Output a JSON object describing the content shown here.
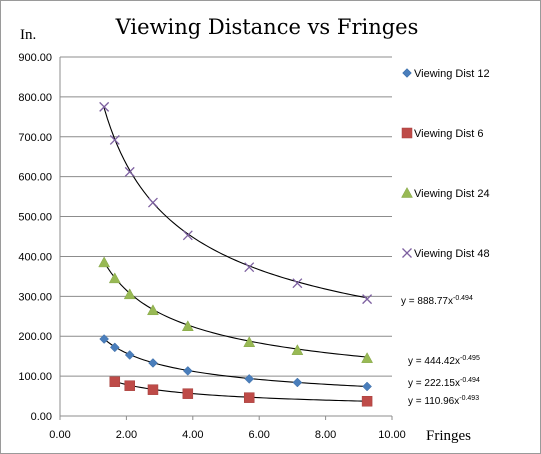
{
  "chart_data": {
    "type": "scatter",
    "title": "Viewing Distance vs Fringes",
    "xlabel": "Fringes",
    "ylabel": "In.",
    "xlim": [
      0,
      10
    ],
    "ylim": [
      0,
      900
    ],
    "xticks": [
      "0.00",
      "2.00",
      "4.00",
      "6.00",
      "8.00",
      "10.00"
    ],
    "yticks": [
      "0.00",
      "100.00",
      "200.00",
      "300.00",
      "400.00",
      "500.00",
      "600.00",
      "700.00",
      "800.00",
      "900.00"
    ],
    "grid": "horizontal",
    "legend_position": "right",
    "series": [
      {
        "name": "Viewing Dist 12",
        "marker": "diamond",
        "color": "#4a7ebb",
        "points": [
          [
            1.33,
            193
          ],
          [
            1.65,
            172
          ],
          [
            2.1,
            153
          ],
          [
            2.8,
            133
          ],
          [
            3.85,
            113
          ],
          [
            5.7,
            93
          ],
          [
            7.15,
            84
          ],
          [
            9.25,
            74
          ]
        ],
        "trendline": {
          "coef": 222.15,
          "exp": -0.494,
          "x_range": [
            1.33,
            9.25
          ]
        },
        "equation": {
          "prefix": "y = 222.15x",
          "exponent": "-0.494"
        }
      },
      {
        "name": "Viewing Dist 6",
        "marker": "square",
        "color": "#be4b48",
        "points": [
          [
            1.65,
            86
          ],
          [
            2.1,
            76
          ],
          [
            2.8,
            66
          ],
          [
            3.85,
            56
          ],
          [
            5.7,
            46
          ],
          [
            9.25,
            37
          ]
        ],
        "trendline": {
          "coef": 110.96,
          "exp": -0.493,
          "x_range": [
            1.65,
            9.25
          ]
        },
        "equation": {
          "prefix": "y = 110.96x",
          "exponent": "-0.493"
        }
      },
      {
        "name": "Viewing Dist 24",
        "marker": "triangle",
        "color": "#98b954",
        "points": [
          [
            1.33,
            385
          ],
          [
            1.65,
            345
          ],
          [
            2.1,
            305
          ],
          [
            2.8,
            265
          ],
          [
            3.85,
            225
          ],
          [
            5.7,
            185
          ],
          [
            7.15,
            165
          ],
          [
            9.25,
            145
          ]
        ],
        "trendline": {
          "coef": 444.42,
          "exp": -0.495,
          "x_range": [
            1.33,
            9.25
          ]
        },
        "equation": {
          "prefix": "y = 444.42x",
          "exponent": "-0.495"
        }
      },
      {
        "name": "Viewing Dist 48",
        "marker": "x",
        "color": "#7d60a0",
        "points": [
          [
            1.33,
            775
          ],
          [
            1.65,
            692
          ],
          [
            2.1,
            612
          ],
          [
            2.8,
            535
          ],
          [
            3.85,
            453
          ],
          [
            5.7,
            373
          ],
          [
            7.15,
            333
          ],
          [
            9.25,
            293
          ]
        ],
        "trendline": {
          "coef": 888.77,
          "exp": -0.494,
          "x_range": [
            1.33,
            9.25
          ]
        },
        "equation": {
          "prefix": "y = 888.77x",
          "exponent": "-0.494"
        }
      }
    ]
  }
}
